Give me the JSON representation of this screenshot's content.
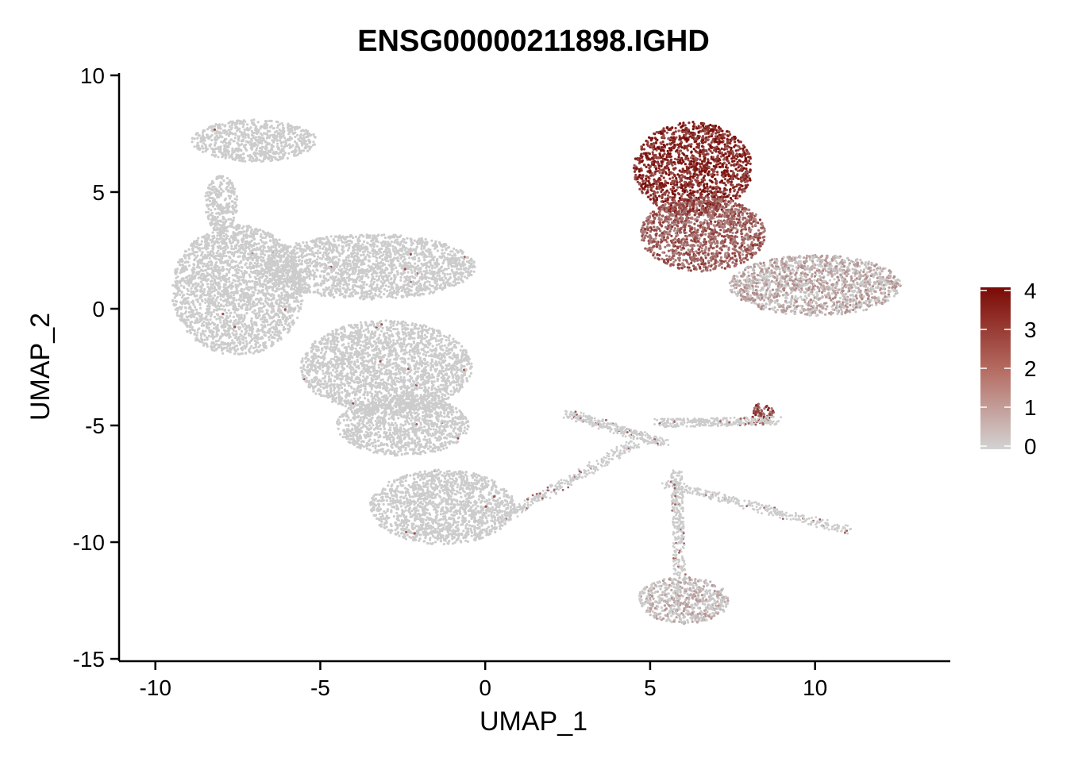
{
  "chart_data": {
    "type": "scatter",
    "title": "ENSG00000211898.IGHD",
    "xlabel": "UMAP_1",
    "ylabel": "UMAP_2",
    "xlim": [
      -11.1,
      14.1
    ],
    "ylim": [
      -15.1,
      10.1
    ],
    "xticks": [
      -10,
      -5,
      0,
      5,
      10
    ],
    "xtick_labels": [
      "-10",
      "-5",
      "0",
      "5",
      "10"
    ],
    "yticks": [
      -15,
      -10,
      -5,
      0,
      5,
      10
    ],
    "ytick_labels": [
      "-15",
      "-10",
      "-5",
      "0",
      "5",
      "10"
    ],
    "grid": false,
    "legend": {
      "type": "colorbar",
      "placement": "right",
      "min": 0,
      "max": 4,
      "ticks": [
        0,
        1,
        2,
        3,
        4
      ],
      "tick_labels": [
        "0",
        "1",
        "2",
        "3",
        "4"
      ],
      "low_color": "#d3d3d3",
      "high_color": "#7a0a05"
    },
    "point_color_base": "#cccccc",
    "regions": [
      {
        "name": "top-left lobe",
        "cx": -7.0,
        "cy": 7.2,
        "rx": 1.9,
        "ry": 0.9,
        "expr": 0.0
      },
      {
        "name": "top-left neck",
        "cx": -8.0,
        "cy": 4.5,
        "rx": 0.5,
        "ry": 1.2,
        "expr": 0.0
      },
      {
        "name": "left main body",
        "cx": -7.5,
        "cy": 0.8,
        "rx": 2.0,
        "ry": 2.8,
        "expr": 0.0
      },
      {
        "name": "center upper band",
        "cx": -3.5,
        "cy": 1.8,
        "rx": 3.2,
        "ry": 1.4,
        "expr": 0.0
      },
      {
        "name": "center lower",
        "cx": -3.0,
        "cy": -2.5,
        "rx": 2.6,
        "ry": 2.0,
        "expr": 0.0
      },
      {
        "name": "lower body",
        "cx": -2.5,
        "cy": -5.0,
        "rx": 2.0,
        "ry": 1.3,
        "expr": 0.0
      },
      {
        "name": "bottom lobe",
        "cx": -1.3,
        "cy": -8.5,
        "rx": 2.2,
        "ry": 1.6,
        "expr": 0.0
      },
      {
        "name": "B cell core",
        "cx": 6.3,
        "cy": 6.0,
        "rx": 1.8,
        "ry": 2.0,
        "expr": 3.3
      },
      {
        "name": "B cell tail",
        "cx": 6.6,
        "cy": 3.2,
        "rx": 1.9,
        "ry": 1.6,
        "expr": 2.2
      },
      {
        "name": "B cell right",
        "cx": 10.0,
        "cy": 1.0,
        "rx": 2.6,
        "ry": 1.3,
        "expr": 0.5
      },
      {
        "name": "right small cluster",
        "cx": 8.4,
        "cy": -4.5,
        "rx": 0.35,
        "ry": 0.45,
        "expr": 2.5
      },
      {
        "name": "bottom cluster",
        "cx": 6.0,
        "cy": -12.5,
        "rx": 1.4,
        "ry": 1.0,
        "expr": 0.2
      }
    ]
  }
}
